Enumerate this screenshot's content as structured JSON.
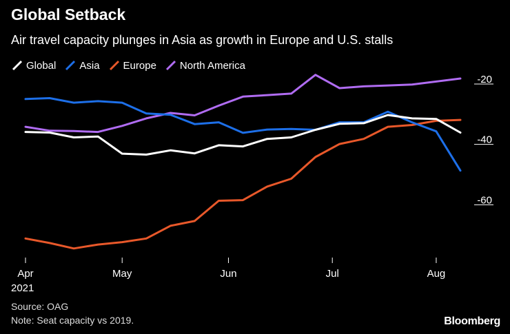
{
  "chart_data": {
    "type": "line",
    "title": "Global Setback",
    "subtitle": "Air travel capacity plunges in Asia as growth in Europe and U.S. stalls",
    "xlabel": "",
    "ylabel": "",
    "ylim": [
      -80,
      -20
    ],
    "yticks": [
      -20,
      -40,
      -60
    ],
    "xticks": [
      {
        "label": "Apr",
        "sublabel": "2021",
        "x": 0
      },
      {
        "label": "May",
        "sublabel": "",
        "x": 4
      },
      {
        "label": "Jun",
        "sublabel": "",
        "x": 8.4
      },
      {
        "label": "Jul",
        "sublabel": "",
        "x": 12.7
      },
      {
        "label": "Aug",
        "sublabel": "",
        "x": 17
      }
    ],
    "x": [
      0,
      1,
      2,
      3,
      4,
      5,
      6,
      7,
      8,
      9,
      10,
      11,
      12,
      13,
      14,
      15,
      16,
      17,
      18
    ],
    "series": [
      {
        "name": "Global",
        "color": "#ffffff",
        "values": [
          -37.7,
          -37.9,
          -39.5,
          -39.2,
          -44.9,
          -45.2,
          -43.8,
          -44.8,
          -42.1,
          -42.5,
          -40,
          -39.5,
          -37,
          -35,
          -34.8,
          -32.1,
          -33.2,
          -33.4,
          -37.9
        ]
      },
      {
        "name": "Asia",
        "color": "#1d6fe8",
        "values": [
          -26.8,
          -26.5,
          -28,
          -27.5,
          -28,
          -31.6,
          -32,
          -35.1,
          -34.5,
          -38,
          -36.9,
          -36.7,
          -37,
          -34.5,
          -34.5,
          -31,
          -34.5,
          -37.5,
          -50.5
        ]
      },
      {
        "name": "Europe",
        "color": "#e8582a",
        "values": [
          -73,
          -74.5,
          -76.3,
          -75,
          -74.2,
          -73,
          -68.8,
          -67.2,
          -60.5,
          -60.3,
          -55.8,
          -53.2,
          -46,
          -41.7,
          -40,
          -36,
          -35.4,
          -34,
          -33.7
        ]
      },
      {
        "name": "North America",
        "color": "#b06cf2",
        "values": [
          -36,
          -37.3,
          -37.4,
          -37.7,
          -35.7,
          -33.2,
          -31.4,
          -32.2,
          -29,
          -26,
          -25.5,
          -25,
          -18.8,
          -23.2,
          -22.6,
          -22.3,
          -22,
          -21,
          -20
        ]
      }
    ]
  },
  "legend": {
    "items": [
      {
        "label": "Global",
        "color": "#ffffff"
      },
      {
        "label": "Asia",
        "color": "#1d6fe8"
      },
      {
        "label": "Europe",
        "color": "#e8582a"
      },
      {
        "label": "North America",
        "color": "#b06cf2"
      }
    ]
  },
  "footer": {
    "source": "Source: OAG",
    "note": "Note: Seat capacity vs 2019.",
    "brand": "Bloomberg"
  }
}
